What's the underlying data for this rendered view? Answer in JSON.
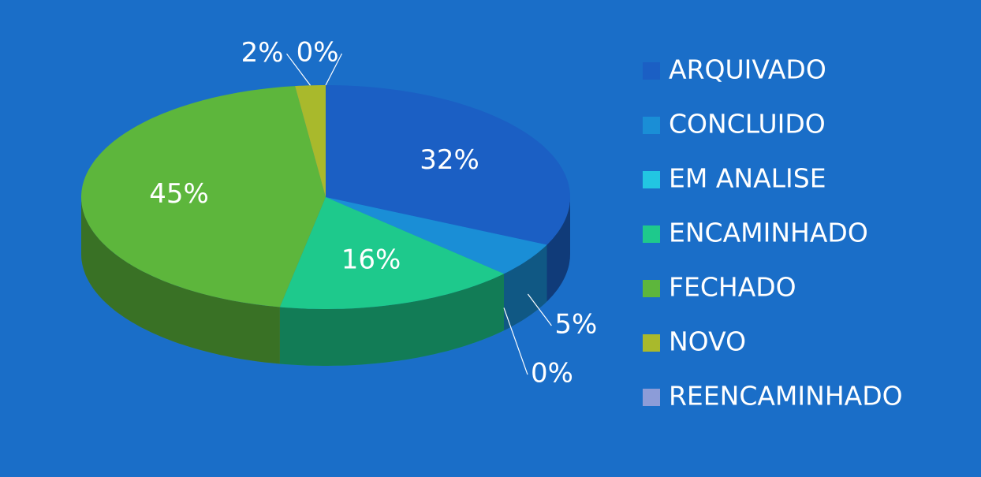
{
  "chart_data": {
    "type": "pie",
    "categories": [
      "ARQUIVADO",
      "CONCLUIDO",
      "EM ANALISE",
      "ENCAMINHADO",
      "FECHADO",
      "NOVO",
      "REENCAMINHADO"
    ],
    "values": [
      32,
      5,
      0,
      16,
      45,
      2,
      0
    ],
    "value_labels": [
      "32%",
      "5%",
      "0%",
      "16%",
      "45%",
      "2%",
      "0%"
    ],
    "colors": [
      "#1b5fc4",
      "#1a8ed6",
      "#22c6e2",
      "#1ec98c",
      "#5db63c",
      "#a9b92c",
      "#8c9cd8"
    ],
    "legend": "right"
  }
}
